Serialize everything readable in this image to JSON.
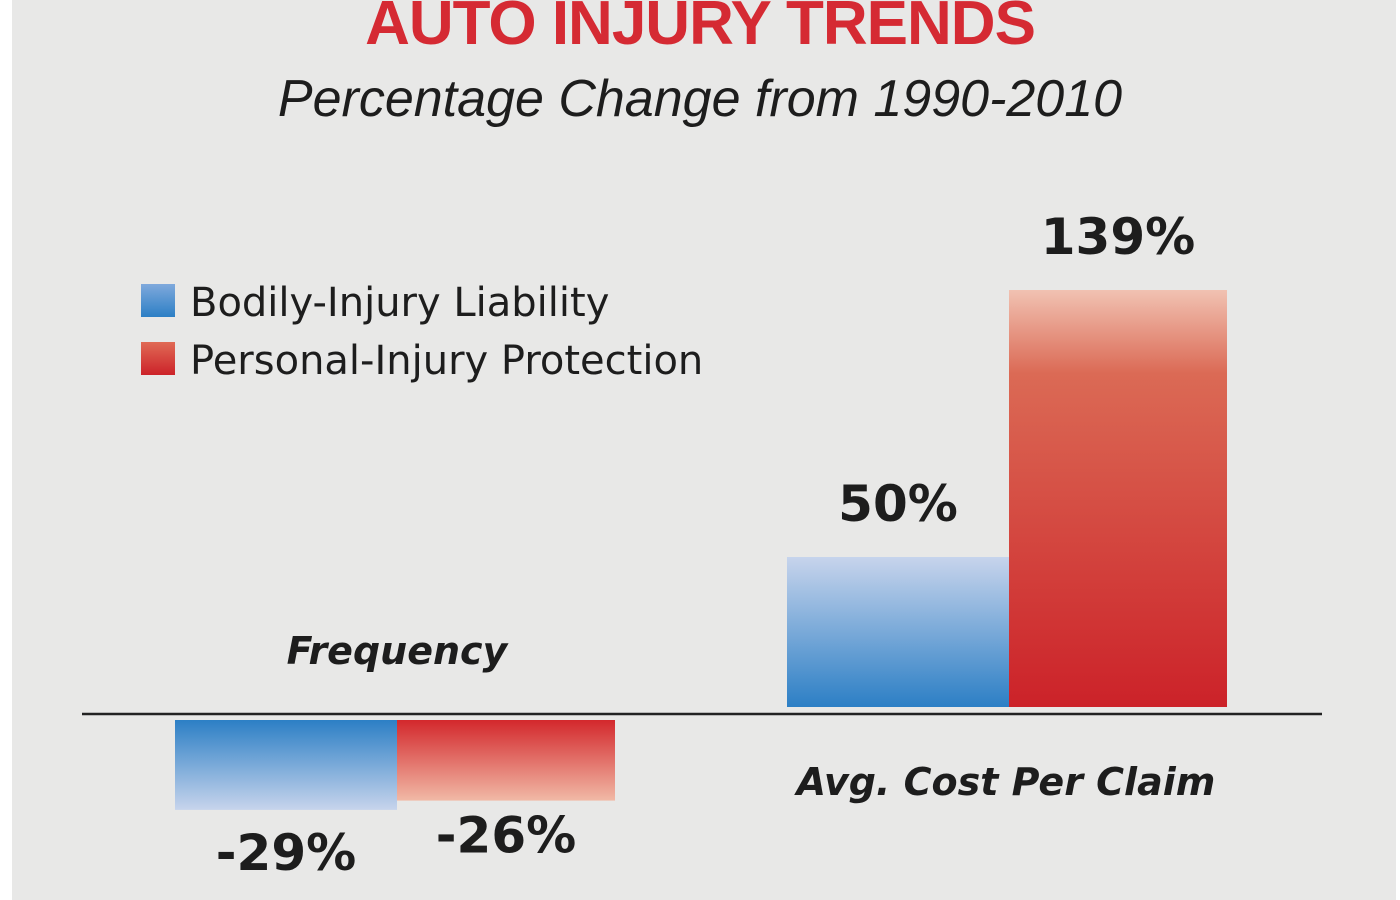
{
  "chart_data": {
    "type": "bar",
    "title": "AUTO INJURY TRENDS",
    "subtitle": "Percentage Change from 1990-2010",
    "categories": [
      "Frequency",
      "Avg. Cost Per Claim"
    ],
    "series": [
      {
        "name": "Bodily-Injury Liability",
        "values": [
          -29,
          50
        ],
        "labels": [
          "-29%",
          "50%"
        ],
        "color": "#2e7fc4"
      },
      {
        "name": "Personal-Injury Protection",
        "values": [
          -26,
          139
        ],
        "labels": [
          "-26%",
          "139%"
        ],
        "color": "#cc2229"
      }
    ],
    "legend": "top-left",
    "grid": false,
    "ylim": [
      -29,
      139
    ]
  }
}
